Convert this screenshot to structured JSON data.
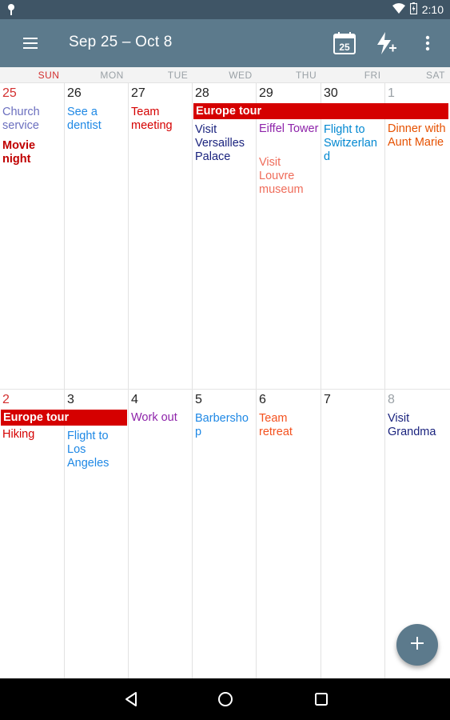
{
  "status_bar": {
    "time": "2:10"
  },
  "app_bar": {
    "title": "Sep 25 – Oct 8",
    "today_badge": "25"
  },
  "weekdays": [
    "SUN",
    "MON",
    "TUE",
    "WED",
    "THU",
    "FRI",
    "SAT"
  ],
  "colors": {
    "app_bar": "#5c7a8c",
    "status_bar": "#3f5566",
    "sunday": "#d32f2f",
    "banner": "#d50000"
  },
  "weeks": [
    {
      "days": [
        {
          "num": "25",
          "style": "sun",
          "events": [
            {
              "text": "Church service",
              "color": "#6b6fbf"
            },
            {
              "text": "Movie night",
              "color": "#c00000",
              "bold": true
            }
          ]
        },
        {
          "num": "26",
          "events": [
            {
              "text": "See a dentist",
              "color": "#1e88e5"
            }
          ]
        },
        {
          "num": "27",
          "events": [
            {
              "text": "Team meeting",
              "color": "#d50000"
            }
          ]
        },
        {
          "num": "28",
          "events": [
            {
              "text": "Visit Versailles Palace",
              "color": "#1a237e"
            }
          ]
        },
        {
          "num": "29",
          "events": [
            {
              "text": "Eiffel Tower",
              "color": "#8e24aa"
            },
            {
              "text": "Visit Louvre museum",
              "color": "#ef6c5a"
            }
          ]
        },
        {
          "num": "30",
          "events": [
            {
              "text": "Flight to Switzerland",
              "color": "#0288d1"
            }
          ]
        },
        {
          "num": "1",
          "style": "dim",
          "events": [
            {
              "text": "Dinner with Aunt Marie",
              "color": "#e65100"
            }
          ]
        }
      ],
      "banner": "Europe tour"
    },
    {
      "days": [
        {
          "num": "2",
          "style": "sun",
          "events": [
            {
              "text": "Hiking",
              "color": "#d50000"
            }
          ]
        },
        {
          "num": "3",
          "events": [
            {
              "text": "Flight to Los Angeles",
              "color": "#1e88e5"
            }
          ]
        },
        {
          "num": "4",
          "events": [
            {
              "text": "Work out",
              "color": "#8e24aa"
            }
          ]
        },
        {
          "num": "5",
          "events": [
            {
              "text": "Barbershop",
              "color": "#1e88e5"
            }
          ]
        },
        {
          "num": "6",
          "events": [
            {
              "text": "Team retreat",
              "color": "#f4511e"
            }
          ]
        },
        {
          "num": "7",
          "events": []
        },
        {
          "num": "8",
          "style": "dim",
          "events": [
            {
              "text": "Visit Grandma",
              "color": "#1a237e"
            }
          ]
        }
      ],
      "banner": "Europe tour"
    }
  ]
}
